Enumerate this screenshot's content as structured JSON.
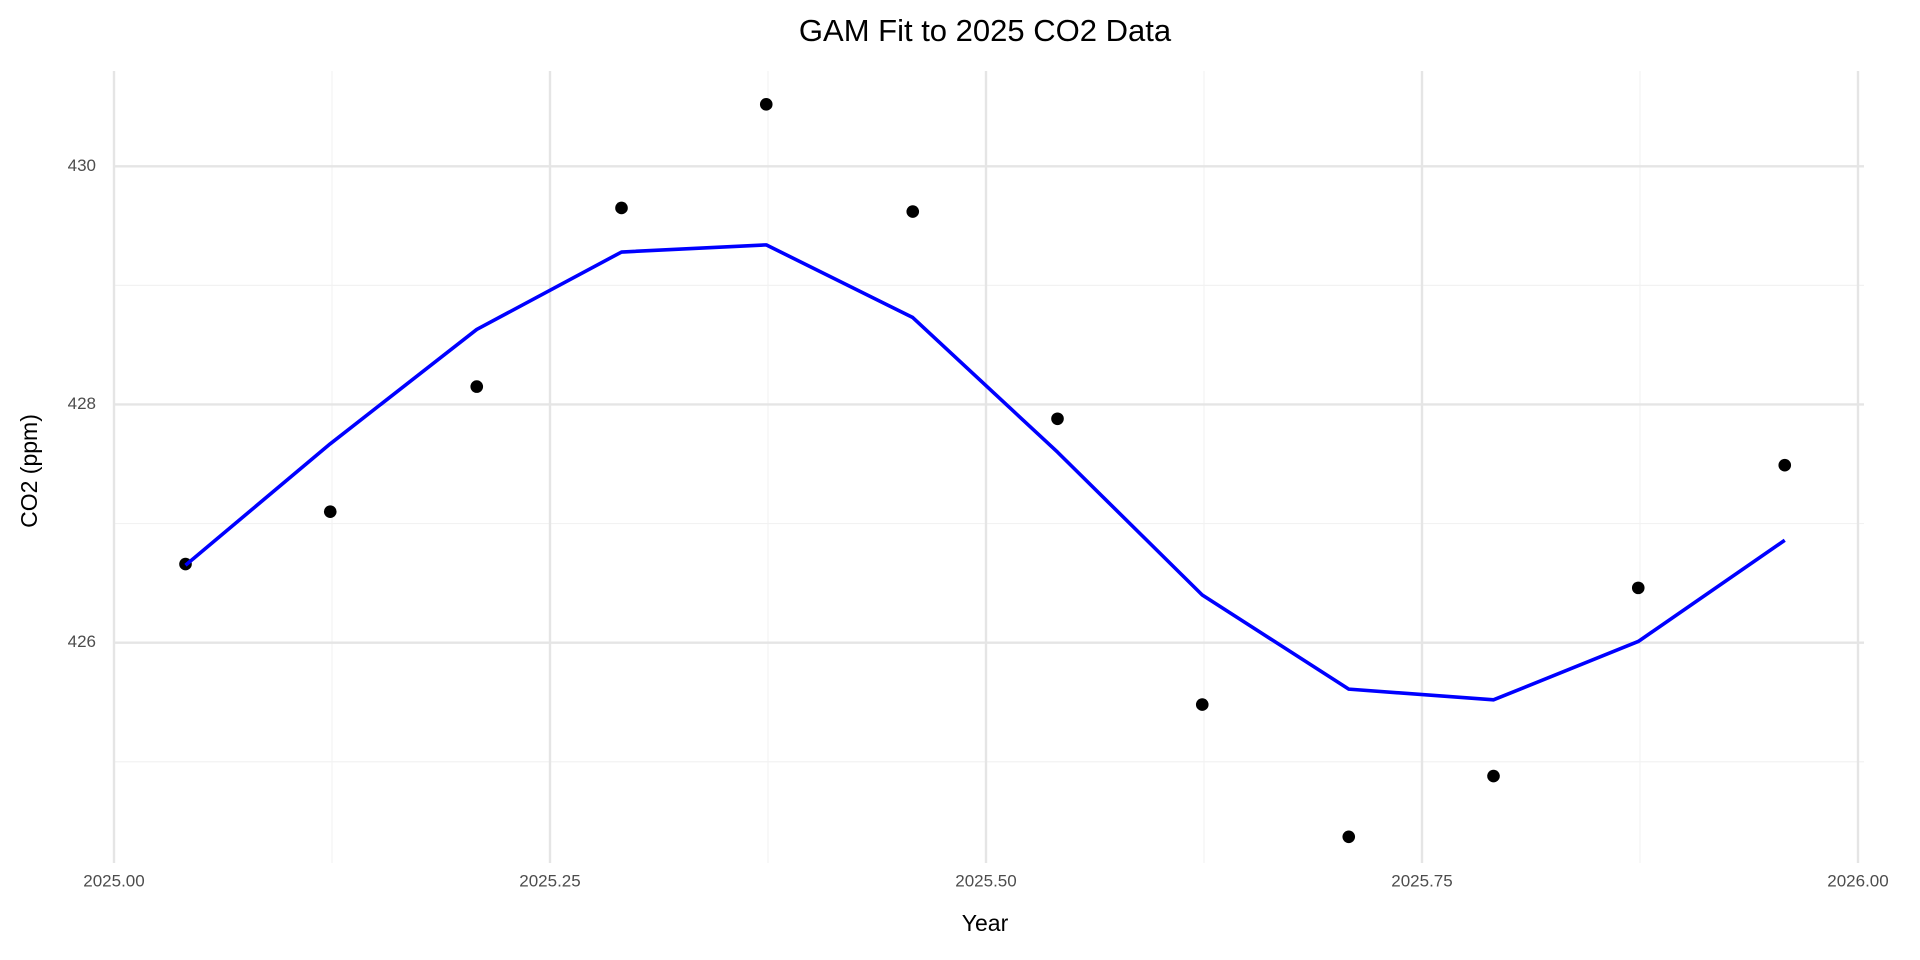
{
  "chart_data": {
    "type": "scatter",
    "title": "GAM Fit to 2025 CO2 Data",
    "x_label": "Year",
    "y_label": "CO2 (ppm)",
    "x": [
      2025.041,
      2025.124,
      2025.208,
      2025.291,
      2025.374,
      2025.458,
      2025.541,
      2025.624,
      2025.708,
      2025.791,
      2025.874,
      2025.958
    ],
    "series": [
      {
        "type": "scatter",
        "color": "#000000",
        "values": [
          426.66,
          427.1,
          428.15,
          429.65,
          430.52,
          429.62,
          427.88,
          425.48,
          424.37,
          424.88,
          426.46,
          427.49
        ]
      },
      {
        "type": "line",
        "color": "#0000ff",
        "values": [
          426.65,
          427.67,
          428.63,
          429.28,
          429.34,
          428.73,
          427.6,
          426.4,
          425.61,
          425.52,
          426.01,
          426.86
        ]
      }
    ],
    "xlim": [
      2025.0,
      2026.0
    ],
    "xticks": [
      {
        "value": 2025.0,
        "label": "2025.00"
      },
      {
        "value": 2025.25,
        "label": "2025.25"
      },
      {
        "value": 2025.5,
        "label": "2025.50"
      },
      {
        "value": 2025.75,
        "label": "2025.75"
      },
      {
        "value": 2026.0,
        "label": "2026.00"
      }
    ],
    "x_minor_ticks": [
      2025.125,
      2025.375,
      2025.625,
      2025.875
    ],
    "ylim": [
      424.15,
      430.8
    ],
    "yticks": [
      426,
      428,
      430
    ],
    "y_minor_ticks": [
      425,
      427,
      429
    ],
    "grid": true
  }
}
